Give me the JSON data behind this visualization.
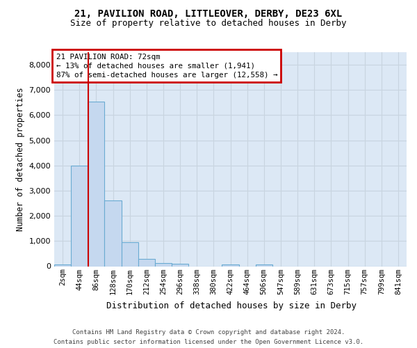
{
  "title1": "21, PAVILION ROAD, LITTLEOVER, DERBY, DE23 6XL",
  "title2": "Size of property relative to detached houses in Derby",
  "xlabel": "Distribution of detached houses by size in Derby",
  "ylabel": "Number of detached properties",
  "footer1": "Contains HM Land Registry data © Crown copyright and database right 2024.",
  "footer2": "Contains public sector information licensed under the Open Government Licence v3.0.",
  "bin_labels": [
    "2sqm",
    "44sqm",
    "86sqm",
    "128sqm",
    "170sqm",
    "212sqm",
    "254sqm",
    "296sqm",
    "338sqm",
    "380sqm",
    "422sqm",
    "464sqm",
    "506sqm",
    "547sqm",
    "589sqm",
    "631sqm",
    "673sqm",
    "715sqm",
    "757sqm",
    "799sqm",
    "841sqm"
  ],
  "bar_values": [
    75,
    4000,
    6550,
    2600,
    950,
    300,
    120,
    100,
    0,
    0,
    75,
    0,
    75,
    0,
    0,
    0,
    0,
    0,
    0,
    0,
    0
  ],
  "bar_color": "#c5d8ef",
  "bar_edge_color": "#6aabd2",
  "vline_x_index": 1.52,
  "annotation_title": "21 PAVILION ROAD: 72sqm",
  "annotation_line1": "← 13% of detached houses are smaller (1,941)",
  "annotation_line2": "87% of semi-detached houses are larger (12,558) →",
  "annotation_box_facecolor": "#ffffff",
  "annotation_border_color": "#cc0000",
  "vline_color": "#cc0000",
  "grid_color": "#c8d4e0",
  "ylim": [
    0,
    8500
  ],
  "yticks": [
    0,
    1000,
    2000,
    3000,
    4000,
    5000,
    6000,
    7000,
    8000
  ],
  "axes_bg": "#dce8f5",
  "title1_fontsize": 10,
  "title2_fontsize": 9,
  "ylabel_fontsize": 8.5,
  "xlabel_fontsize": 9,
  "tick_fontsize": 8,
  "xtick_fontsize": 7.5,
  "footer_fontsize": 6.5
}
